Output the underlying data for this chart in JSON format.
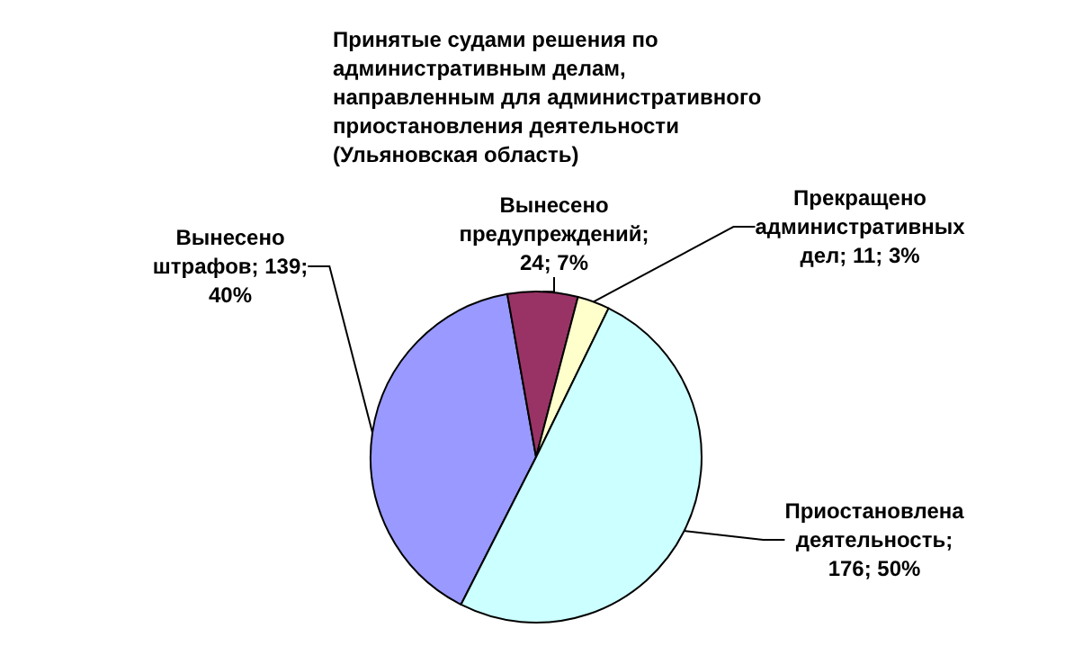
{
  "chart_data": {
    "type": "pie",
    "title": "Принятые судами решения по административным делам, направленным для административного приостановления деятельности (Ульяновская область)",
    "categories": [
      "Вынесено штрафов",
      "Вынесено предупреждений",
      "Прекращено административных дел",
      "Приостановлена деятельность"
    ],
    "values": [
      139,
      24,
      11,
      176
    ],
    "colors": [
      "#9999ff",
      "#993366",
      "#ffffcc",
      "#ccffff"
    ],
    "value_labels": [
      "; 139; 40%",
      "; 24; 7%",
      "; 11; 3%",
      "; 176; 50%"
    ],
    "legend": false
  }
}
